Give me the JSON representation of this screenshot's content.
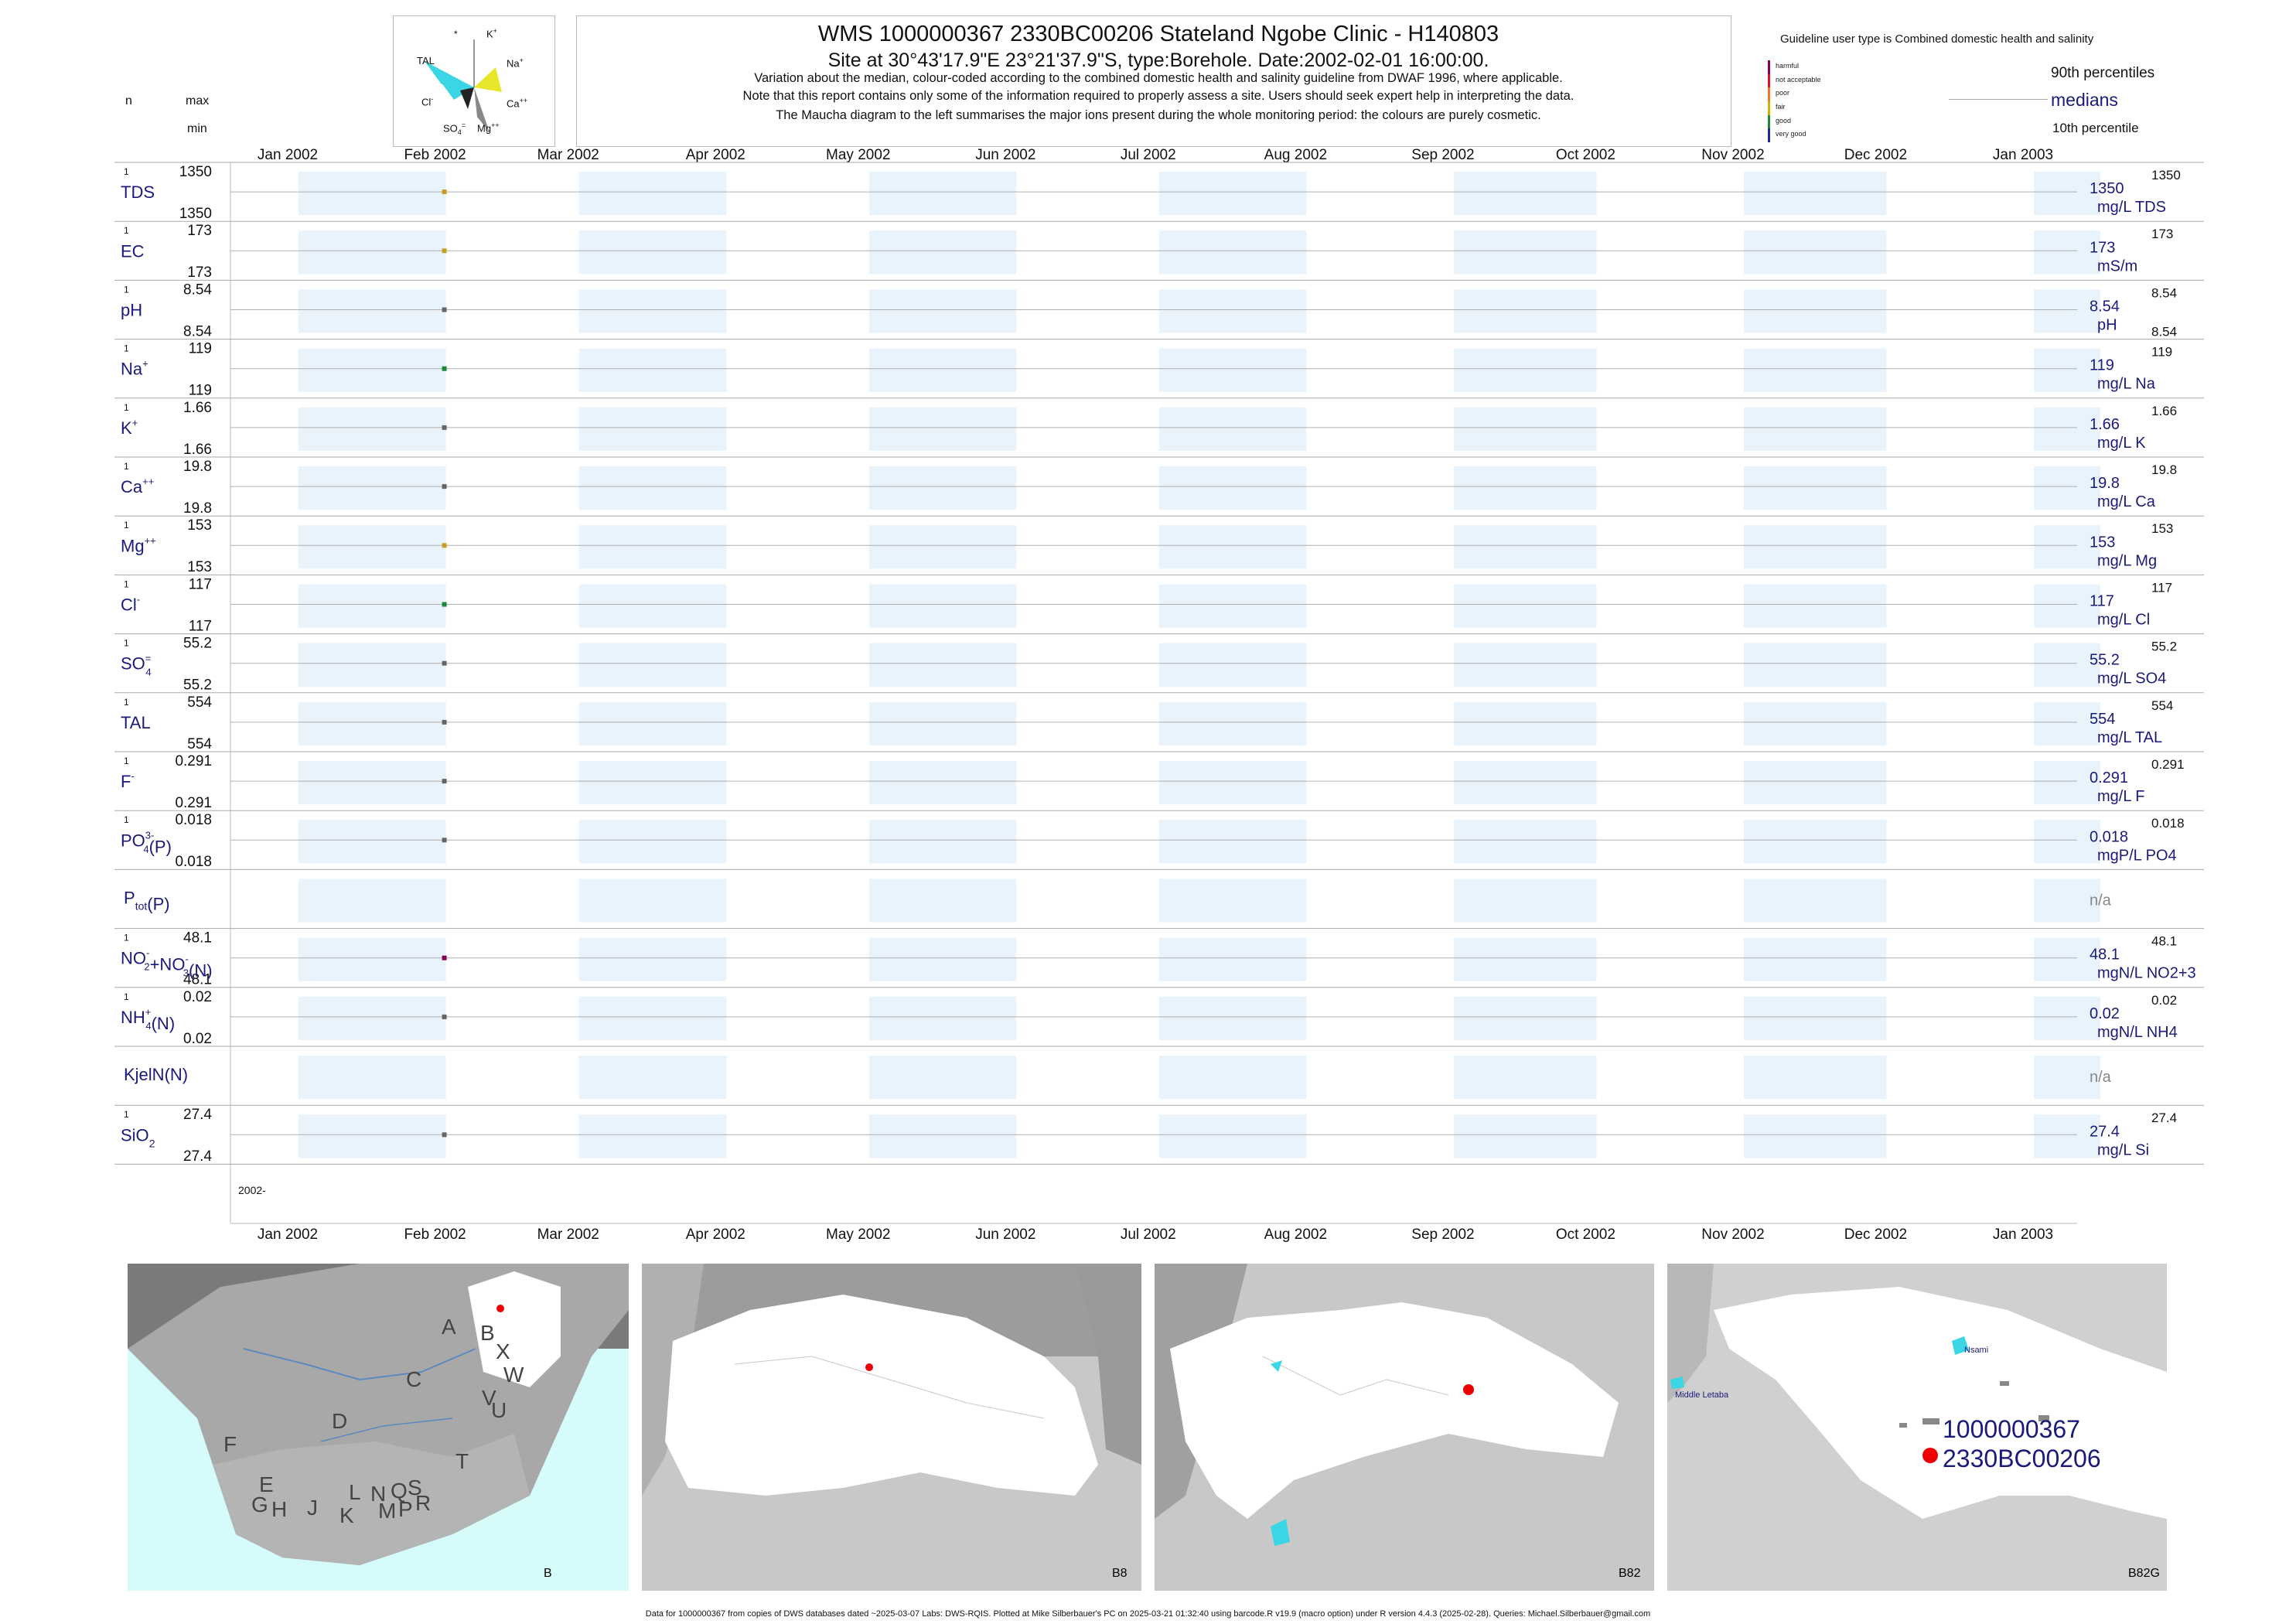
{
  "header": {
    "title": "WMS 1000000367 2330BC00206 Stateland Ngobe Clinic - H140803",
    "subtitle": "Site at 30°43'17.9\"E 23°21'37.9\"S, type:Borehole. Date:2002-02-01 16:00:00.",
    "note1": "Variation about the median,  colour-coded according to the combined domestic health and salinity guideline from DWAF 1996, where applicable.",
    "note2": "Note that this report contains only some of the information required to properly assess a site. Users should seek expert help in interpreting the data.",
    "note3": "The Maucha diagram to the left summarises the major ions present during the whole monitoring period: the colours are purely cosmetic."
  },
  "maucha": {
    "labels": {
      "star": "*",
      "k": "K",
      "na": "Na",
      "ca": "Ca",
      "mg": "Mg",
      "so4": "SO",
      "cl": "Cl",
      "tal": "TAL"
    },
    "colors": {
      "tal": "#3ad6e6",
      "na": "#e6e62a",
      "mg": "#888888",
      "dark": "#222222"
    }
  },
  "left_header": {
    "n": "n",
    "max": "max",
    "min": "min"
  },
  "guideline": {
    "title": "Guideline user type is Combined domestic health and salinity",
    "levels": [
      {
        "label": "harmful",
        "color": "#8b0057"
      },
      {
        "label": "not acceptable",
        "color": "#e0102a"
      },
      {
        "label": "poor",
        "color": "#f07820"
      },
      {
        "label": "fair",
        "color": "#d4b000"
      },
      {
        "label": "good",
        "color": "#1a8a3a"
      },
      {
        "label": "very good",
        "color": "#1a2aa0"
      }
    ],
    "p90": "90th percentiles",
    "medians": "medians",
    "p10": "10th percentile"
  },
  "chart_data": {
    "type": "scatter",
    "x_axis_labels": [
      "Jan 2002",
      "Feb 2002",
      "Mar 2002",
      "Apr 2002",
      "May 2002",
      "Jun 2002",
      "Jul 2002",
      "Aug 2002",
      "Sep 2002",
      "Oct 2002",
      "Nov 2002",
      "Dec 2002",
      "Jan 2003"
    ],
    "x_range": [
      "2002-01-01",
      "2003-01-01"
    ],
    "year_label": "2002-",
    "sample_date": "2002-02-01",
    "rows": [
      {
        "label": "TDS",
        "sup": "",
        "sub": "",
        "n": "1",
        "max": "1350",
        "min": "1350",
        "median": "1350",
        "units": "mg/L TDS",
        "p90": "1350",
        "p10": "",
        "color": "#c8a020"
      },
      {
        "label": "EC",
        "sup": "",
        "sub": "",
        "n": "1",
        "max": "173",
        "min": "173",
        "median": "173",
        "units": "mS/m",
        "p90": "173",
        "p10": "",
        "color": "#c8a020"
      },
      {
        "label": "pH",
        "sup": "",
        "sub": "",
        "n": "1",
        "max": "8.54",
        "min": "8.54",
        "median": "8.54",
        "units": "pH",
        "p90": "8.54",
        "p10": "8.54",
        "color": "#666666"
      },
      {
        "label": "Na",
        "sup": "+",
        "sub": "",
        "n": "1",
        "max": "119",
        "min": "119",
        "median": "119",
        "units": "mg/L Na",
        "p90": "119",
        "p10": "",
        "color": "#1a8a3a"
      },
      {
        "label": "K",
        "sup": "+",
        "sub": "",
        "n": "1",
        "max": "1.66",
        "min": "1.66",
        "median": "1.66",
        "units": "mg/L K",
        "p90": "1.66",
        "p10": "",
        "color": "#666666"
      },
      {
        "label": "Ca",
        "sup": "++",
        "sub": "",
        "n": "1",
        "max": "19.8",
        "min": "19.8",
        "median": "19.8",
        "units": "mg/L Ca",
        "p90": "19.8",
        "p10": "",
        "color": "#666666"
      },
      {
        "label": "Mg",
        "sup": "++",
        "sub": "",
        "n": "1",
        "max": "153",
        "min": "153",
        "median": "153",
        "units": "mg/L Mg",
        "p90": "153",
        "p10": "",
        "color": "#c8a020"
      },
      {
        "label": "Cl",
        "sup": "-",
        "sub": "",
        "n": "1",
        "max": "117",
        "min": "117",
        "median": "117",
        "units": "mg/L Cl",
        "p90": "117",
        "p10": "",
        "color": "#1a8a3a"
      },
      {
        "label": "SO",
        "sup": "=",
        "sub": "4",
        "n": "1",
        "max": "55.2",
        "min": "55.2",
        "median": "55.2",
        "units": "mg/L SO4",
        "p90": "55.2",
        "p10": "",
        "color": "#666666"
      },
      {
        "label": "TAL",
        "sup": "",
        "sub": "",
        "n": "1",
        "max": "554",
        "min": "554",
        "median": "554",
        "units": "mg/L TAL",
        "p90": "554",
        "p10": "",
        "color": "#666666"
      },
      {
        "label": "F",
        "sup": "-",
        "sub": "",
        "n": "1",
        "max": "0.291",
        "min": "0.291",
        "median": "0.291",
        "units": "mg/L F",
        "p90": "0.291",
        "p10": "",
        "color": "#666666"
      },
      {
        "label": "PO",
        "sup": "3-",
        "sub": "4",
        "suffix": "(P)",
        "n": "1",
        "max": "0.018",
        "min": "0.018",
        "median": "0.018",
        "units": "mgP/L PO4",
        "p90": "0.018",
        "p10": "",
        "color": "#666666"
      },
      {
        "label": "P",
        "sup": "",
        "sub": "tot",
        "suffix": "(P)",
        "n": "",
        "max": "",
        "min": "",
        "median": "",
        "units": "",
        "na": "n/a",
        "p90": "",
        "p10": "",
        "color": ""
      },
      {
        "label": "NO",
        "sup": "-",
        "sub": "2",
        "suffix": "+NO",
        "suffix_sup": "-",
        "suffix_sub": "3",
        "suffix2": "(N)",
        "n": "1",
        "max": "48.1",
        "min": "48.1",
        "median": "48.1",
        "units": "mgN/L NO2+3",
        "p90": "48.1",
        "p10": "",
        "color": "#8b0057"
      },
      {
        "label": "NH",
        "sup": "+",
        "sub": "4",
        "suffix": "(N)",
        "n": "1",
        "max": "0.02",
        "min": "0.02",
        "median": "0.02",
        "units": "mgN/L NH4",
        "p90": "0.02",
        "p10": "",
        "color": "#666666"
      },
      {
        "label": "KjelN(N)",
        "sup": "",
        "sub": "",
        "n": "",
        "max": "",
        "min": "",
        "median": "",
        "units": "",
        "na": "n/a",
        "p90": "",
        "p10": "",
        "color": ""
      },
      {
        "label": "SiO",
        "sup": "",
        "sub": "2",
        "n": "1",
        "max": "27.4",
        "min": "27.4",
        "median": "27.4",
        "units": "mg/L Si",
        "p90": "27.4",
        "p10": "",
        "color": "#666666"
      }
    ]
  },
  "maps": [
    {
      "label": "B",
      "letters": [
        "A",
        "B",
        "X",
        "C",
        "W",
        "V",
        "U",
        "D",
        "F",
        "T",
        "E",
        "G",
        "H",
        "J",
        "K",
        "L",
        "M",
        "N",
        "P",
        "Q",
        "R",
        "S"
      ]
    },
    {
      "label": "B8"
    },
    {
      "label": "B82"
    },
    {
      "label": "B82G",
      "place1": "Nsami",
      "place2": "Middle Letaba",
      "site_id": "1000000367",
      "site_code": "2330BC00206"
    }
  ],
  "footer": "Data for 1000000367 from copies of DWS databases dated ~2025-03-07 Labs: DWS-RQIS. Plotted at Mike Silberbauer's PC on 2025-03-21 01:32:40 using barcode.R v19.9 (macro option) under R version 4.4.3 (2025-02-28). Queries: Michael.Silberbauer@gmail.com"
}
